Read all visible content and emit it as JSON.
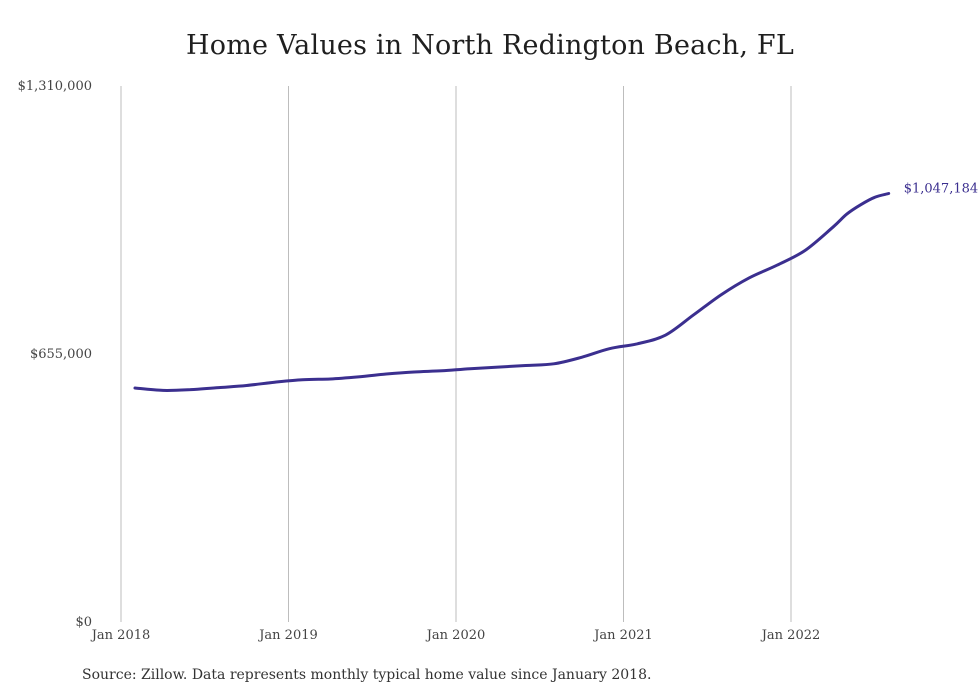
{
  "chart_data": {
    "type": "line",
    "title": "Home Values in North Redington Beach, FL",
    "xlabel": "",
    "ylabel": "",
    "x_ticks": [
      "Jan 2018",
      "Jan 2019",
      "Jan 2020",
      "Jan 2021",
      "Jan 2022"
    ],
    "y_ticks": [
      "$0",
      "$655,000",
      "$1,310,000"
    ],
    "ylim": [
      0,
      1310000
    ],
    "xlim": [
      "2018-01",
      "2022-12"
    ],
    "grid": "vertical",
    "line_color": "#3b2f8f",
    "series": [
      {
        "x": [
          "2018-02",
          "2018-04",
          "2018-06",
          "2018-08",
          "2018-10",
          "2018-12",
          "2019-02",
          "2019-04",
          "2019-06",
          "2019-08",
          "2019-10",
          "2019-12",
          "2020-02",
          "2020-04",
          "2020-06",
          "2020-08",
          "2020-10",
          "2020-12",
          "2021-02",
          "2021-04",
          "2021-06",
          "2021-08",
          "2021-10",
          "2021-12",
          "2022-02",
          "2022-04",
          "2022-05",
          "2022-06",
          "2022-07",
          "2022-08"
        ],
        "values": [
          572000,
          566000,
          568000,
          573000,
          578000,
          586000,
          592000,
          594000,
          599000,
          606000,
          611000,
          614000,
          619000,
          623000,
          627000,
          631000,
          647000,
          668000,
          680000,
          701000,
          750000,
          800000,
          841000,
          872000,
          908000,
          965000,
          997000,
          1020000,
          1038000,
          1047184
        ]
      }
    ],
    "end_label": "$1,047,184",
    "source": "Source: Zillow. Data represents monthly typical home value since January 2018."
  }
}
